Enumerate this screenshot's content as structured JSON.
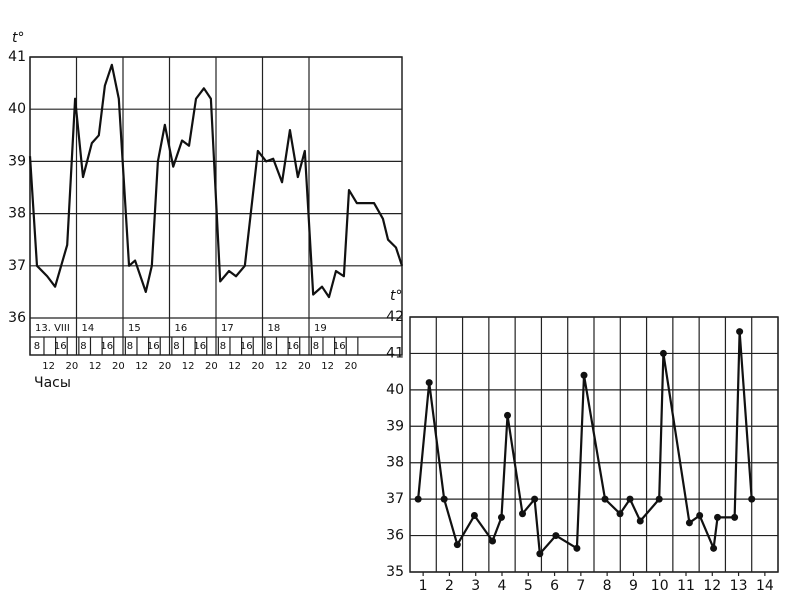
{
  "chart_data": [
    {
      "type": "line",
      "ylabel": "t°",
      "xlabel": "Часы",
      "ylim": [
        36,
        41
      ],
      "yticks": [
        36,
        37,
        38,
        39,
        40,
        41
      ],
      "xlim": [
        13,
        21
      ],
      "xticks": [
        {
          "value": 13,
          "label": "13. VIII"
        },
        14,
        15,
        16,
        17,
        18,
        19
      ],
      "hour_ticks": [
        {
          "value": 13.15,
          "label": "8"
        },
        {
          "value": 13.4,
          "label": "12"
        },
        {
          "value": 13.65,
          "label": "16"
        },
        {
          "value": 13.9,
          "label": "20"
        },
        {
          "value": 14.15,
          "label": "8"
        },
        {
          "value": 14.4,
          "label": "12"
        },
        {
          "value": 14.65,
          "label": "16"
        },
        {
          "value": 14.9,
          "label": "20"
        },
        {
          "value": 15.15,
          "label": "8"
        },
        {
          "value": 15.4,
          "label": "12"
        },
        {
          "value": 15.65,
          "label": "16"
        },
        {
          "value": 15.9,
          "label": "20"
        },
        {
          "value": 16.15,
          "label": "8"
        },
        {
          "value": 16.4,
          "label": "12"
        },
        {
          "value": 16.65,
          "label": "16"
        },
        {
          "value": 16.9,
          "label": "20"
        },
        {
          "value": 17.15,
          "label": "8"
        },
        {
          "value": 17.4,
          "label": "12"
        },
        {
          "value": 17.65,
          "label": "16"
        },
        {
          "value": 17.9,
          "label": "20"
        },
        {
          "value": 18.15,
          "label": "8"
        },
        {
          "value": 18.4,
          "label": "12"
        },
        {
          "value": 18.65,
          "label": "16"
        },
        {
          "value": 18.9,
          "label": "20"
        },
        {
          "value": 19.15,
          "label": "8"
        },
        {
          "value": 19.4,
          "label": "12"
        },
        {
          "value": 19.65,
          "label": "16"
        },
        {
          "value": 19.9,
          "label": "20"
        }
      ],
      "grid": true,
      "series": [
        {
          "color": "#111111",
          "x": [
            13.0,
            13.15,
            13.37,
            13.54,
            13.8,
            13.97,
            14.14,
            14.33,
            14.48,
            14.61,
            14.76,
            14.91,
            15.13,
            15.26,
            15.49,
            15.62,
            15.75,
            15.9,
            16.08,
            16.27,
            16.42,
            16.57,
            16.74,
            16.89,
            17.09,
            17.28,
            17.43,
            17.62,
            17.9,
            18.08,
            18.23,
            18.42,
            18.59,
            18.76,
            18.91,
            19.09,
            19.28,
            19.43,
            19.58,
            19.75,
            19.86,
            20.03,
            20.4,
            20.59,
            20.7,
            20.87,
            21.0
          ],
          "values": [
            39.1,
            37.0,
            36.8,
            36.6,
            37.4,
            40.2,
            38.7,
            39.35,
            39.5,
            40.45,
            40.85,
            40.2,
            37.0,
            37.1,
            36.5,
            37.0,
            39.0,
            39.7,
            38.9,
            39.4,
            39.3,
            40.2,
            40.4,
            40.2,
            36.7,
            36.9,
            36.8,
            37.0,
            39.2,
            39.0,
            39.05,
            38.6,
            39.6,
            38.7,
            39.2,
            36.45,
            36.6,
            36.4,
            36.9,
            36.8,
            38.45,
            38.2,
            38.2,
            37.9,
            37.5,
            37.35,
            37.0
          ]
        }
      ]
    },
    {
      "type": "line-markers",
      "ylabel": "t°",
      "ylim": [
        35,
        42
      ],
      "yticks": [
        35,
        36,
        37,
        38,
        39,
        40,
        41,
        42
      ],
      "xlim": [
        0.5,
        14.5
      ],
      "xticks": [
        1,
        2,
        3,
        4,
        5,
        6,
        7,
        8,
        9,
        10,
        11,
        12,
        13,
        14
      ],
      "grid": true,
      "series": [
        {
          "color": "#111111",
          "x": [
            0.81,
            1.23,
            1.8,
            2.3,
            2.95,
            3.64,
            3.98,
            4.21,
            4.78,
            5.24,
            5.44,
            6.05,
            6.85,
            7.12,
            7.92,
            8.49,
            8.87,
            9.26,
            9.98,
            10.14,
            11.13,
            11.52,
            12.05,
            12.2,
            12.85,
            13.04,
            13.5
          ],
          "values": [
            37.0,
            40.2,
            37.0,
            35.75,
            36.55,
            35.85,
            36.5,
            39.3,
            36.6,
            37.0,
            35.5,
            36.0,
            35.65,
            40.4,
            37.0,
            36.6,
            37.0,
            36.4,
            37.0,
            41.0,
            36.35,
            36.55,
            35.65,
            36.5,
            36.5,
            41.6,
            37.0
          ]
        }
      ]
    }
  ]
}
